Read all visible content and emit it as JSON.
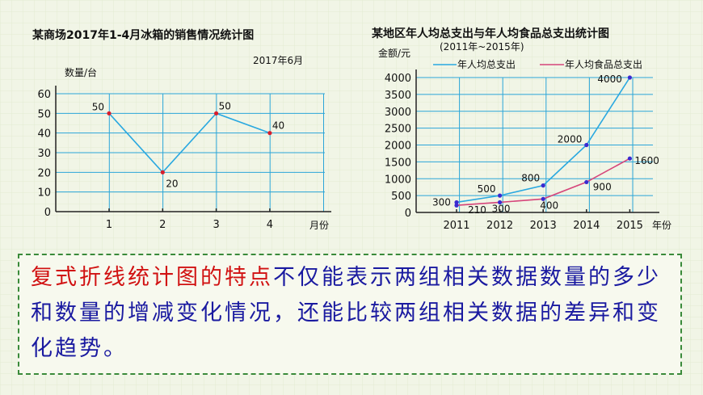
{
  "chart_data": [
    {
      "type": "line",
      "title": "某商场2017年1-4月冰箱的销售情况统计图",
      "subtitle": "2017年6月",
      "ylabel": "数量/台",
      "xlabel": "月份",
      "categories": [
        "1",
        "2",
        "3",
        "4"
      ],
      "ylim": [
        0,
        60
      ],
      "yticks": [
        "0",
        "10",
        "20",
        "30",
        "40",
        "50",
        "60"
      ],
      "series": [
        {
          "values": [
            50,
            20,
            50,
            40
          ],
          "labels": [
            "50",
            "20",
            "50",
            "40"
          ]
        }
      ],
      "grid": true,
      "colors": {
        "line": "#29a8e0",
        "point": "#d81e2c",
        "grid": "#2aa5d8"
      }
    },
    {
      "type": "line",
      "title": "某地区年人均总支出与年人均食品总支出统计图",
      "subtitle": "(2011年~2015年)",
      "ylabel": "金额/元",
      "xlabel": "年份",
      "categories": [
        "2011",
        "2012",
        "2013",
        "2014",
        "2015"
      ],
      "ylim": [
        0,
        4000
      ],
      "yticks": [
        "0",
        "500",
        "1000",
        "1500",
        "2000",
        "2500",
        "3000",
        "3500",
        "4000"
      ],
      "series": [
        {
          "name": "年人均总支出",
          "values": [
            300,
            500,
            800,
            2000,
            4000
          ],
          "labels": [
            "300",
            "500",
            "800",
            "2000",
            "4000"
          ],
          "color": "#29a8e0"
        },
        {
          "name": "年人均食品总支出",
          "values": [
            210,
            300,
            400,
            900,
            1600
          ],
          "labels": [
            "210",
            "300",
            "400",
            "900",
            "1600"
          ],
          "color": "#d6457a"
        }
      ],
      "legend": "top",
      "grid": true,
      "colors": {
        "point": "#3a2ad0",
        "grid": "#2aa5d8"
      }
    }
  ],
  "note": {
    "heading": "复式折线统计图的特点",
    "body": "不仅能表示两组相关数据数量的多少和数量的增减变化情况，还能比较两组相关数据的差异和变化趋势。"
  }
}
